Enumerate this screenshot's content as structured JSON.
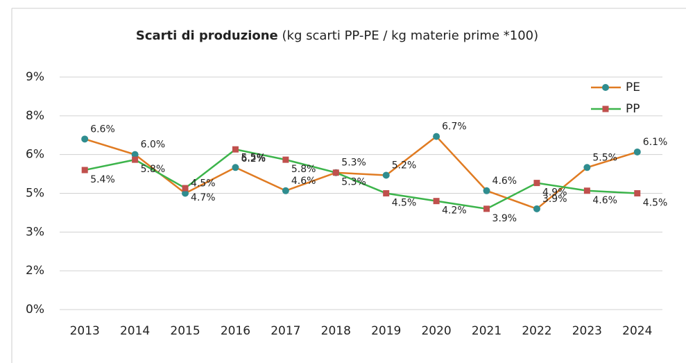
{
  "chart_data": {
    "type": "line",
    "title": "Scarti di produzione",
    "subtitle": "(kg scarti PP-PE / kg materie prime *100)",
    "categories": [
      "2013",
      "2014",
      "2015",
      "2016",
      "2017",
      "2018",
      "2019",
      "2020",
      "2021",
      "2022",
      "2023",
      "2024"
    ],
    "series": [
      {
        "name": "PE",
        "color": "#e07b22",
        "marker_color": "#2f8d8f",
        "marker": "circle",
        "values": [
          6.6,
          6.0,
          4.5,
          5.5,
          4.6,
          5.3,
          5.2,
          6.7,
          4.6,
          3.9,
          5.5,
          6.1
        ],
        "value_labels": [
          "6.6%",
          "6.0%",
          "4.5%",
          "5.5%",
          "4.6%",
          "5.3%",
          "5.2%",
          "6.7%",
          "4.6%",
          "3.9%",
          "5.5%",
          "6.1%"
        ]
      },
      {
        "name": "PP",
        "color": "#3cb44b",
        "marker_color": "#c0504d",
        "marker": "square",
        "values": [
          5.4,
          5.8,
          4.7,
          6.2,
          5.8,
          5.3,
          4.5,
          4.2,
          3.9,
          4.9,
          4.6,
          4.5
        ],
        "value_labels": [
          "5.4%",
          "5.8%",
          "4.7%",
          "6.2%",
          "5.8%",
          "5.3%",
          "4.5%",
          "4.2%",
          "3.9%",
          "4.9%",
          "4.6%",
          "4.5%"
        ]
      }
    ],
    "ylim": [
      0,
      9
    ],
    "yticks": [
      {
        "value": 0,
        "label": "0%"
      },
      {
        "value": 1.5,
        "label": "2%"
      },
      {
        "value": 3,
        "label": "3%"
      },
      {
        "value": 4.5,
        "label": "5%"
      },
      {
        "value": 6,
        "label": "6%"
      },
      {
        "value": 7.5,
        "label": "8%"
      },
      {
        "value": 9,
        "label": "9%"
      }
    ],
    "grid": true,
    "legend": "top-right"
  }
}
